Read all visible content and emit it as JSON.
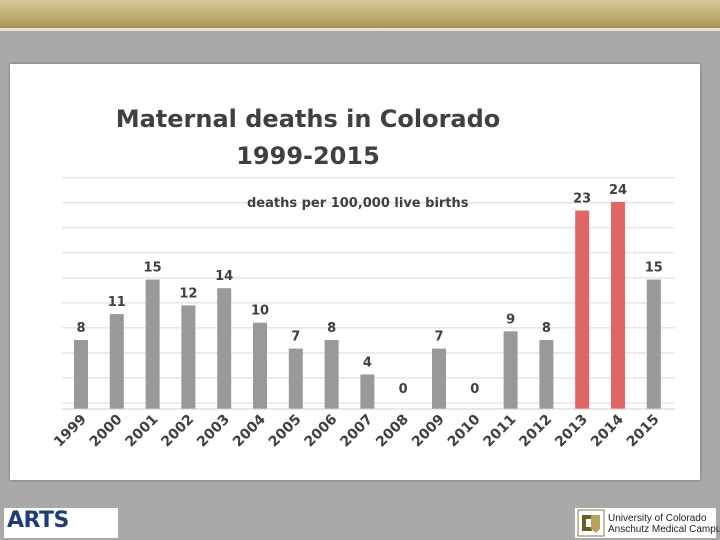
{
  "chart_data": {
    "type": "bar",
    "title": "Maternal deaths in Colorado",
    "subtitle": "1999-2015",
    "ylabel": "deaths per 100,000 live births",
    "xlabel": "",
    "categories": [
      "1999",
      "2000",
      "2001",
      "2002",
      "2003",
      "2004",
      "2005",
      "2006",
      "2007",
      "2008",
      "2009",
      "2010",
      "2011",
      "2012",
      "2013",
      "2014",
      "2015"
    ],
    "values": [
      8,
      11,
      15,
      12,
      14,
      10,
      7,
      8,
      4,
      0,
      7,
      0,
      9,
      8,
      23,
      24,
      15
    ],
    "highlight": [
      false,
      false,
      false,
      false,
      false,
      false,
      false,
      false,
      false,
      false,
      false,
      false,
      false,
      false,
      true,
      true,
      false
    ],
    "ylim": [
      0,
      27
    ],
    "grid": true,
    "colors": {
      "bar": "#999999",
      "highlight": "#e06666",
      "grid": "#d9d9d9"
    }
  },
  "footer": {
    "left_logo": "ARTS",
    "right_logo_line1": "University of Colorado",
    "right_logo_line2": "Anschutz Medical Campus"
  }
}
